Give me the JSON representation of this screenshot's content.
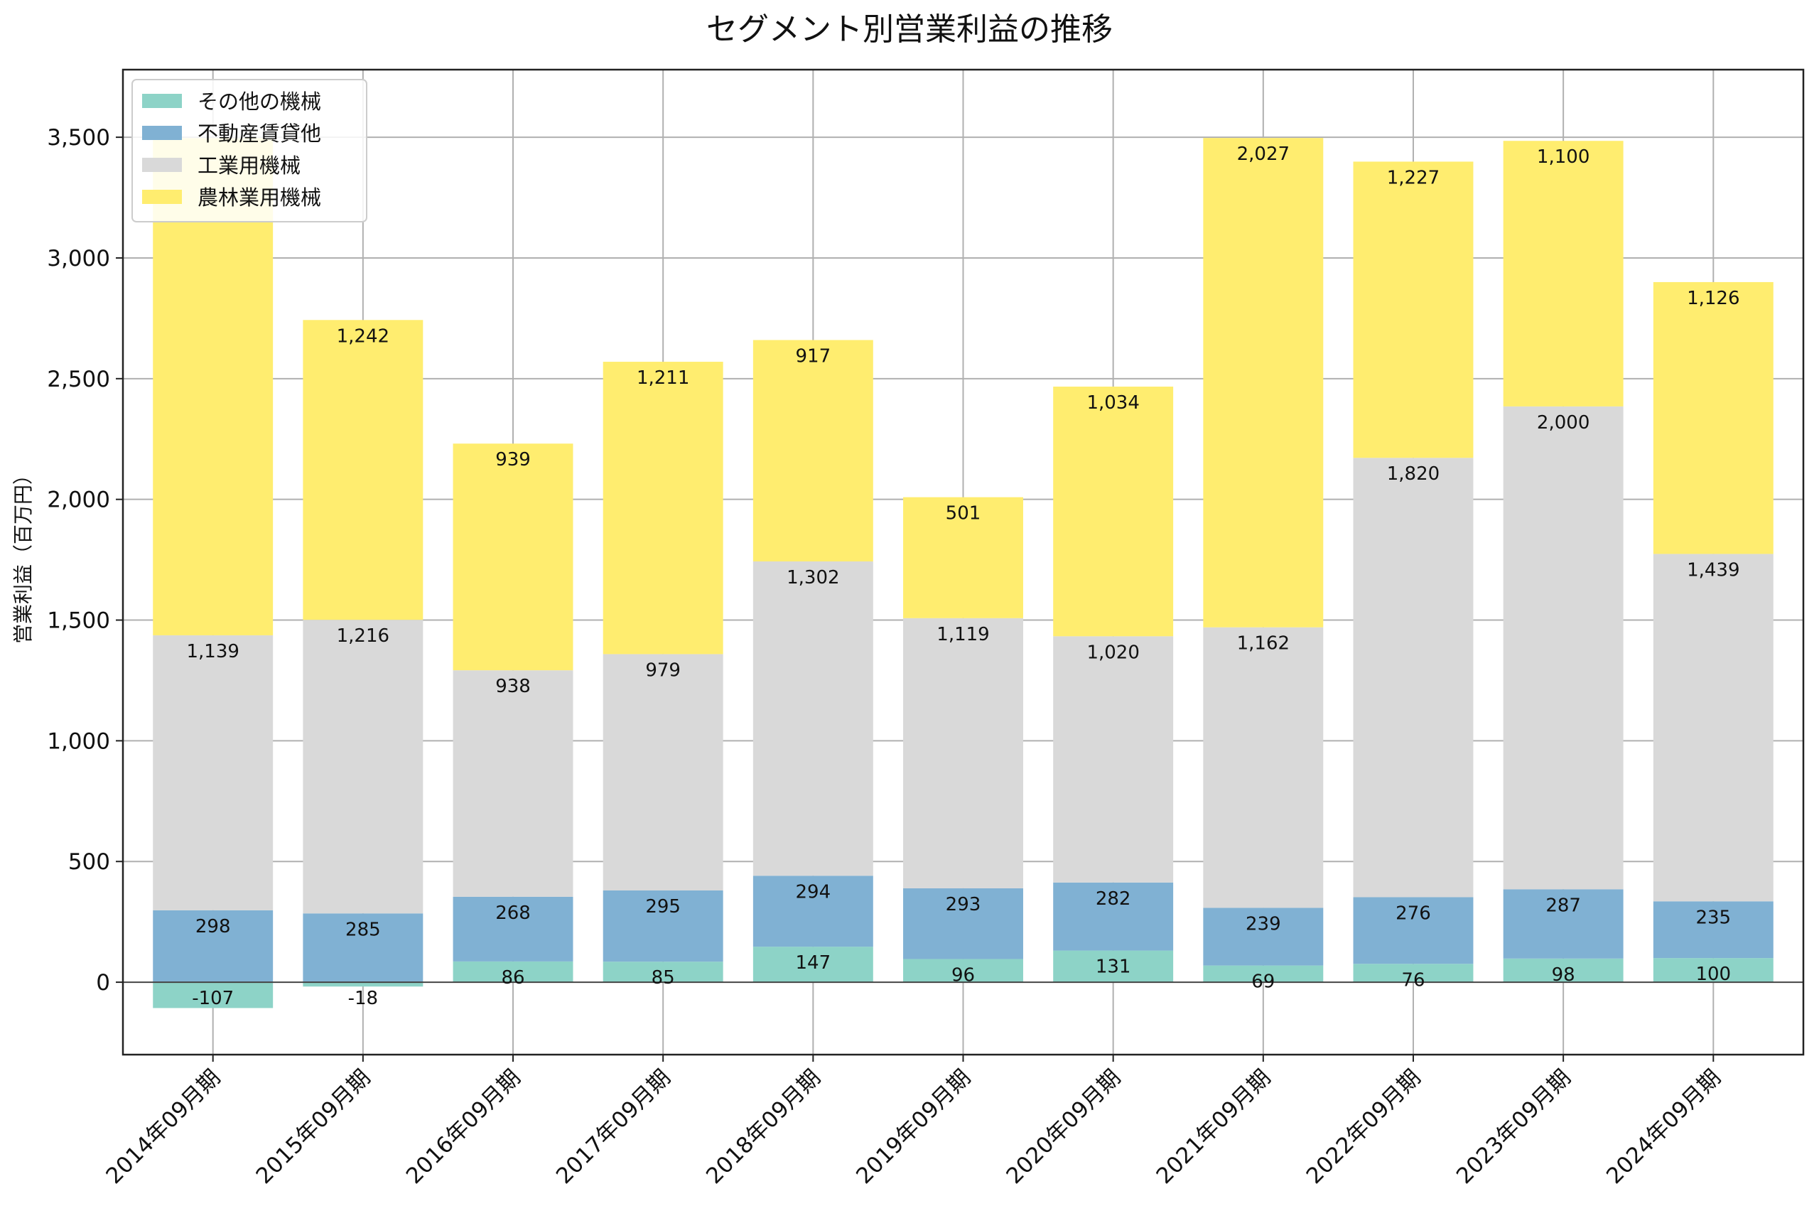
{
  "chart_data": {
    "type": "bar",
    "stacked": true,
    "title": "セグメント別営業利益の推移",
    "xlabel": "",
    "ylabel": "営業利益（百万円）",
    "ylim": [
      -300,
      3780
    ],
    "yticks": [
      0,
      500,
      1000,
      1500,
      2000,
      2500,
      3000,
      3500
    ],
    "ytick_labels": [
      "0",
      "500",
      "1,000",
      "1,500",
      "2,000",
      "2,500",
      "3,000",
      "3,500"
    ],
    "grid": true,
    "legend_position": "top-left",
    "categories": [
      "2014年09月期",
      "2015年09月期",
      "2016年09月期",
      "2017年09月期",
      "2018年09月期",
      "2019年09月期",
      "2020年09月期",
      "2021年09月期",
      "2022年09月期",
      "2023年09月期",
      "2024年09月期"
    ],
    "series": [
      {
        "name": "その他の機械",
        "color": "#8dd3c7",
        "values": [
          -107,
          -18,
          86,
          85,
          147,
          96,
          131,
          69,
          76,
          98,
          100
        ],
        "labels": [
          "-107",
          "-18",
          "86",
          "85",
          "147",
          "96",
          "131",
          "69",
          "76",
          "98",
          "100"
        ]
      },
      {
        "name": "不動産賃貸他",
        "color": "#80b1d3",
        "values": [
          298,
          285,
          268,
          295,
          294,
          293,
          282,
          239,
          276,
          287,
          235
        ],
        "labels": [
          "298",
          "285",
          "268",
          "295",
          "294",
          "293",
          "282",
          "239",
          "276",
          "287",
          "235"
        ]
      },
      {
        "name": "工業用機械",
        "color": "#d9d9d9",
        "values": [
          1139,
          1216,
          938,
          979,
          1302,
          1119,
          1020,
          1162,
          1820,
          2000,
          1439
        ],
        "labels": [
          "1,139",
          "1,216",
          "938",
          "979",
          "1,302",
          "1,119",
          "1,020",
          "1,162",
          "1,820",
          "2,000",
          "1,439"
        ]
      },
      {
        "name": "農林業用機械",
        "color": "#ffed6f",
        "values": [
          2059,
          1242,
          939,
          1211,
          917,
          501,
          1034,
          2027,
          1227,
          1100,
          1126
        ],
        "labels": [
          "",
          "1,242",
          "939",
          "1,211",
          "917",
          "501",
          "1,034",
          "2,027",
          "1,227",
          "1,100",
          "1,126"
        ]
      }
    ]
  }
}
